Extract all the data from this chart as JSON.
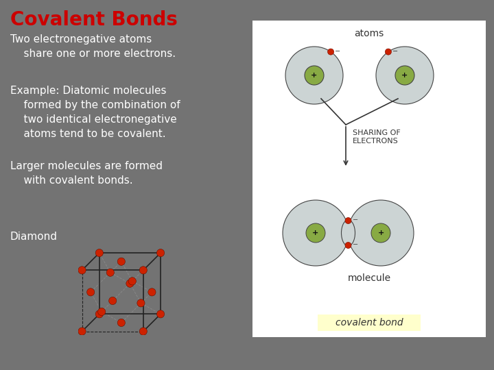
{
  "title": "Covalent Bonds",
  "title_color": "#cc0000",
  "title_fontsize": 20,
  "background_color": "#737373",
  "text_color": "#ffffff",
  "bullet_lines": [
    "Two electronegative atoms\n    share one or more electrons.",
    "Example: Diatomic molecules\n    formed by the combination of\n    two identical electronegative\n    atoms tend to be covalent.",
    "Larger molecules are formed\n    with covalent bonds."
  ],
  "diamond_label": "Diamond",
  "atom_fill": "#ccd4d4",
  "nucleus_fill": "#88aa44",
  "electron_fill": "#cc2200",
  "covalent_bond_bg": "#ffffcc",
  "text_fontsize": 11
}
